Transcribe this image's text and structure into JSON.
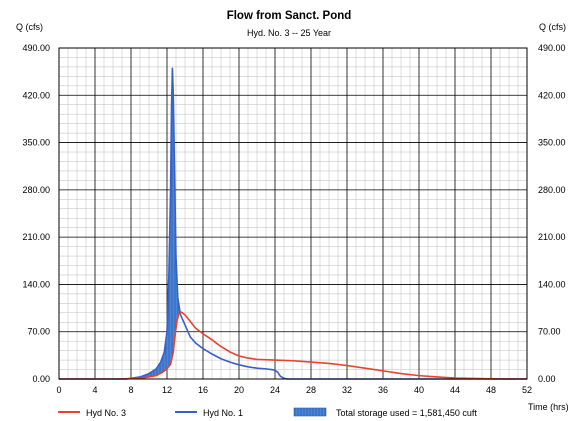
{
  "chart_data": {
    "type": "area",
    "title": "Flow from Sanct. Pond",
    "subtitle": "Hyd. No. 3 -- 25 Year",
    "ylabel_left": "Q (cfs)",
    "ylabel_right": "Q (cfs)",
    "xlabel": "Time (hrs)",
    "xlim": [
      0,
      52
    ],
    "ylim": [
      0,
      490
    ],
    "x_ticks": [
      "0",
      "4",
      "8",
      "12",
      "16",
      "20",
      "24",
      "28",
      "32",
      "36",
      "40",
      "44",
      "48",
      "52"
    ],
    "y_ticks": [
      "0.00",
      "70.00",
      "140.00",
      "210.00",
      "280.00",
      "350.00",
      "420.00",
      "490.00"
    ],
    "grid": true,
    "legend_position": "bottom",
    "series": [
      {
        "name": "Hyd No. 3",
        "color": "#e8432f",
        "points": [
          [
            0,
            0
          ],
          [
            6.4,
            0
          ],
          [
            8,
            0.5
          ],
          [
            9,
            1
          ],
          [
            10,
            3
          ],
          [
            10.8,
            5
          ],
          [
            11.5,
            10
          ],
          [
            12,
            15
          ],
          [
            12.4,
            22
          ],
          [
            12.7,
            40
          ],
          [
            12.9,
            65
          ],
          [
            13.1,
            85
          ],
          [
            13.3,
            96
          ],
          [
            13.6,
            99
          ],
          [
            14,
            95
          ],
          [
            14.6,
            85
          ],
          [
            15.2,
            75
          ],
          [
            16,
            67
          ],
          [
            17,
            58
          ],
          [
            18,
            48
          ],
          [
            19,
            40
          ],
          [
            20,
            34
          ],
          [
            21,
            31
          ],
          [
            22,
            29
          ],
          [
            24,
            28
          ],
          [
            26,
            27
          ],
          [
            28,
            25
          ],
          [
            30,
            23
          ],
          [
            32,
            20
          ],
          [
            34,
            16
          ],
          [
            36,
            12
          ],
          [
            38,
            8
          ],
          [
            40,
            5
          ],
          [
            42,
            3
          ],
          [
            44,
            1.5
          ],
          [
            46,
            0.8
          ],
          [
            48,
            0.3
          ],
          [
            52,
            0
          ]
        ]
      },
      {
        "name": "Hyd No. 1",
        "color": "#3a5fc9",
        "points": [
          [
            0,
            0
          ],
          [
            7.5,
            0
          ],
          [
            8,
            1
          ],
          [
            9,
            3
          ],
          [
            10,
            8
          ],
          [
            10.8,
            15
          ],
          [
            11.3,
            25
          ],
          [
            11.7,
            40
          ],
          [
            12,
            70
          ],
          [
            12.2,
            150
          ],
          [
            12.4,
            280
          ],
          [
            12.5,
            400
          ],
          [
            12.6,
            460
          ],
          [
            12.7,
            420
          ],
          [
            12.85,
            300
          ],
          [
            13,
            180
          ],
          [
            13.2,
            120
          ],
          [
            13.5,
            95
          ],
          [
            14,
            80
          ],
          [
            14.6,
            62
          ],
          [
            15.2,
            53
          ],
          [
            16,
            45
          ],
          [
            17,
            37
          ],
          [
            18,
            30
          ],
          [
            19,
            25
          ],
          [
            20,
            21
          ],
          [
            21,
            18
          ],
          [
            22,
            16
          ],
          [
            23,
            15
          ],
          [
            23.6,
            14
          ],
          [
            24,
            13
          ],
          [
            24.3,
            10
          ],
          [
            24.6,
            4
          ],
          [
            25,
            1
          ],
          [
            25.4,
            0
          ],
          [
            52,
            0
          ]
        ]
      }
    ],
    "legend": {
      "hyd3": "Hyd No. 3",
      "hyd1": "Hyd No. 1",
      "storage": "Total storage used = 1,581,450 cuft"
    }
  }
}
